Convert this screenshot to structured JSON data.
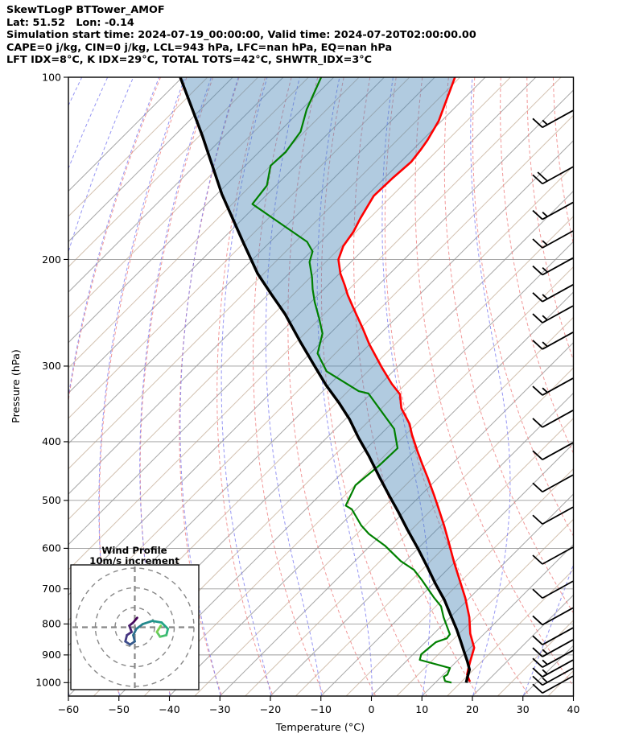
{
  "header": {
    "lines": [
      "SkewTLogP BTTower_AMOF",
      "Lat: 51.52   Lon: -0.14",
      "Simulation start time: 2024-07-19_00:00:00, Valid time: 2024-07-20T02:00:00.00",
      "CAPE=0 j/kg, CIN=0 j/kg, LCL=943 hPa, LFC=nan hPa, EQ=nan hPa",
      "LFT IDX=8°C, K IDX=29°C, TOTAL TOTS=42°C, SHWTR_IDX=3°C"
    ]
  },
  "axes": {
    "x_label": "Temperature (°C)",
    "y_label": "Pressure (hPa)",
    "x_ticks": [
      -60,
      -50,
      -40,
      -30,
      -20,
      -10,
      0,
      10,
      20,
      30,
      40
    ],
    "y_ticks": [
      100,
      200,
      300,
      400,
      500,
      600,
      700,
      800,
      900,
      1000
    ],
    "x_range": [
      -60,
      40
    ],
    "p_range": [
      100,
      1050
    ]
  },
  "inset": {
    "title_line1": "Wind Profile",
    "title_line2": "10m/s increment"
  },
  "colors": {
    "temperature": "#ff0000",
    "dewpoint": "#008000",
    "parcel": "#000000",
    "shading": "#4682b4",
    "shading_opacity": 0.42,
    "dry_adiabat": "#ef8585",
    "moist_adiabat": "#7b7bf0",
    "isotherm_major": "#a9a9a9",
    "isotherm_minor": "#d4c3b2",
    "grid": "#9a9a9a",
    "inset_guides": "#888888"
  },
  "chart_data": {
    "type": "skewt-logp",
    "pressure_axis": {
      "scale": "log",
      "range_hpa": [
        100,
        1050
      ],
      "ticks": [
        100,
        200,
        300,
        400,
        500,
        600,
        700,
        800,
        900,
        1000
      ]
    },
    "temperature_axis": {
      "range_c": [
        -60,
        40
      ],
      "ticks": [
        -60,
        -50,
        -40,
        -30,
        -20,
        -10,
        0,
        10,
        20,
        30,
        40
      ],
      "skew_deg": 45
    },
    "temperature_profile": {
      "pressure_hpa": [
        100,
        118,
        127,
        132,
        138,
        147,
        157,
        171,
        180,
        190,
        200,
        211,
        221,
        229,
        239,
        259,
        276,
        302,
        321,
        334,
        352,
        374,
        389,
        414,
        436,
        458,
        490,
        513,
        550,
        585,
        632,
        676,
        725,
        780,
        830,
        876,
        920,
        949,
        970,
        985,
        997
      ],
      "temp_c": [
        -106,
        -100.6,
        -99,
        -98.4,
        -97.9,
        -98.4,
        -98.6,
        -96.8,
        -95.5,
        -94.7,
        -93,
        -89.8,
        -86.5,
        -84.1,
        -80.9,
        -74.8,
        -70.1,
        -62.9,
        -57.8,
        -54.1,
        -51.1,
        -46.3,
        -43.8,
        -39.5,
        -35.8,
        -32.2,
        -27.4,
        -24.2,
        -19.4,
        -15.3,
        -10.2,
        -5.6,
        -0.8,
        3.8,
        7.2,
        10.8,
        12.6,
        13.8,
        14.7,
        15.8,
        16.7
      ]
    },
    "dewpoint_profile": {
      "pressure_hpa": [
        100,
        113,
        123,
        133,
        140,
        151,
        162,
        187,
        194,
        202,
        214,
        224,
        235,
        250,
        265,
        286,
        306,
        330,
        333,
        381,
        410,
        437,
        472,
        510,
        517,
        550,
        568,
        594,
        630,
        651,
        676,
        723,
        748,
        780,
        832,
        845,
        857,
        898,
        917,
        946,
        970,
        978,
        994,
        1000
      ],
      "temp_c": [
        -132.5,
        -129,
        -125.8,
        -124.7,
        -125,
        -121.8,
        -121,
        -102.7,
        -99.7,
        -98.2,
        -94.7,
        -92.2,
        -89.3,
        -85.2,
        -81.5,
        -78.5,
        -73.2,
        -62.9,
        -60.5,
        -48.4,
        -43.9,
        -44.1,
        -44.9,
        -42.8,
        -40.9,
        -35.8,
        -32.6,
        -27.1,
        -20.9,
        -16.6,
        -13.1,
        -7.2,
        -4,
        -1.3,
        3.3,
        3.5,
        2.1,
        1.6,
        2.4,
        10,
        10.8,
        10.5,
        11.6,
        13.2
      ]
    },
    "parcel_profile": {
      "pressure_hpa": [
        100,
        125,
        156,
        187,
        211,
        228,
        246,
        273,
        296,
        322,
        345,
        367,
        394,
        423,
        458,
        492,
        522,
        559,
        599,
        644,
        688,
        730,
        775,
        817,
        854,
        887,
        922,
        952,
        975,
        1000
      ],
      "temp_c": [
        -160.4,
        -144.4,
        -129,
        -115.4,
        -106.2,
        -99.5,
        -92.8,
        -84.4,
        -77.7,
        -70.7,
        -64.5,
        -59.2,
        -53.7,
        -47.9,
        -41.7,
        -36,
        -31.2,
        -25.8,
        -20.2,
        -14.5,
        -9.4,
        -4.6,
        -0.2,
        3.7,
        6.8,
        9.4,
        12.1,
        14.2,
        15.1,
        16.1
      ]
    },
    "shaded_region": {
      "between": [
        "parcel_profile",
        "temperature_profile"
      ]
    },
    "wind_barbs": {
      "pressure_hpa": [
        117,
        145,
        166,
        185,
        205,
        227,
        246,
        272,
        324,
        366,
        414,
        468,
        529,
        616,
        701,
        776,
        837,
        876,
        912,
        946,
        976,
        1006
      ],
      "speed_ms": [
        15,
        20,
        15,
        15,
        15,
        15,
        15,
        15,
        15,
        10,
        10,
        10,
        10,
        10,
        10,
        10,
        10,
        15,
        15,
        15,
        15,
        10
      ]
    },
    "hodograph": {
      "rings_ms": [
        10,
        20,
        30
      ],
      "trace_uv_ms": [
        [
          1.2,
          4.8
        ],
        [
          -0.8,
          2.4
        ],
        [
          -2.8,
          0.8
        ],
        [
          -1.6,
          -2.4
        ],
        [
          -4,
          -4
        ],
        [
          -4.8,
          -7.2
        ],
        [
          -2.4,
          -8.8
        ],
        [
          0,
          -7.2
        ],
        [
          -0.8,
          -4
        ],
        [
          0.8,
          -0.8
        ],
        [
          4,
          1.6
        ],
        [
          8.8,
          3.2
        ],
        [
          13.6,
          2.4
        ],
        [
          16.8,
          -0.8
        ],
        [
          16,
          -4
        ],
        [
          12.8,
          -4.8
        ],
        [
          11.2,
          -2.4
        ],
        [
          13.2,
          0.8
        ]
      ],
      "trace_colors": [
        "#440154",
        "#471164",
        "#482071",
        "#472e7c",
        "#443983",
        "#3d4d8a",
        "#37598c",
        "#31648d",
        "#2c718e",
        "#277d8e",
        "#228a8d",
        "#1f978b",
        "#21a585",
        "#2eb37c",
        "#44bf70",
        "#5ec962",
        "#7ad151"
      ]
    },
    "background": {
      "isotherm_step_c": 5,
      "dry_adiabat_step_k": 10,
      "moist_adiabat_step_c": 10
    }
  }
}
